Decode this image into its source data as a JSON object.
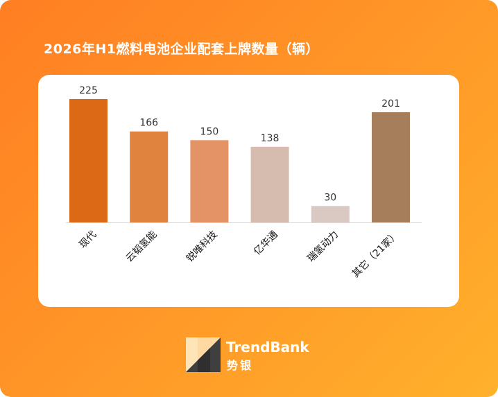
{
  "title": "2026年H1燃料电池企业配套上牌数量（辆）",
  "chart_data": {
    "type": "bar",
    "title": "2026年H1燃料电池企业配套上牌数量（辆）",
    "categories": [
      "现代",
      "云韬氢能",
      "锐唯科技",
      "亿华通",
      "瑞氢动力",
      "其它（21家）"
    ],
    "values": [
      225,
      166,
      150,
      138,
      30,
      201
    ],
    "data_labels": [
      "225",
      "166",
      "150",
      "138",
      "30",
      "201"
    ],
    "colors": [
      "#dc6915",
      "#e0833f",
      "#e39365",
      "#d6bcaf",
      "#dac9c2",
      "#a67e5c"
    ],
    "ylim": [
      0,
      225
    ],
    "grid": false,
    "xlabel": "",
    "ylabel": ""
  },
  "brand": {
    "name": "TrendBank",
    "name_cn": "势银",
    "logo_icon": "trendbank-logo-icon"
  }
}
